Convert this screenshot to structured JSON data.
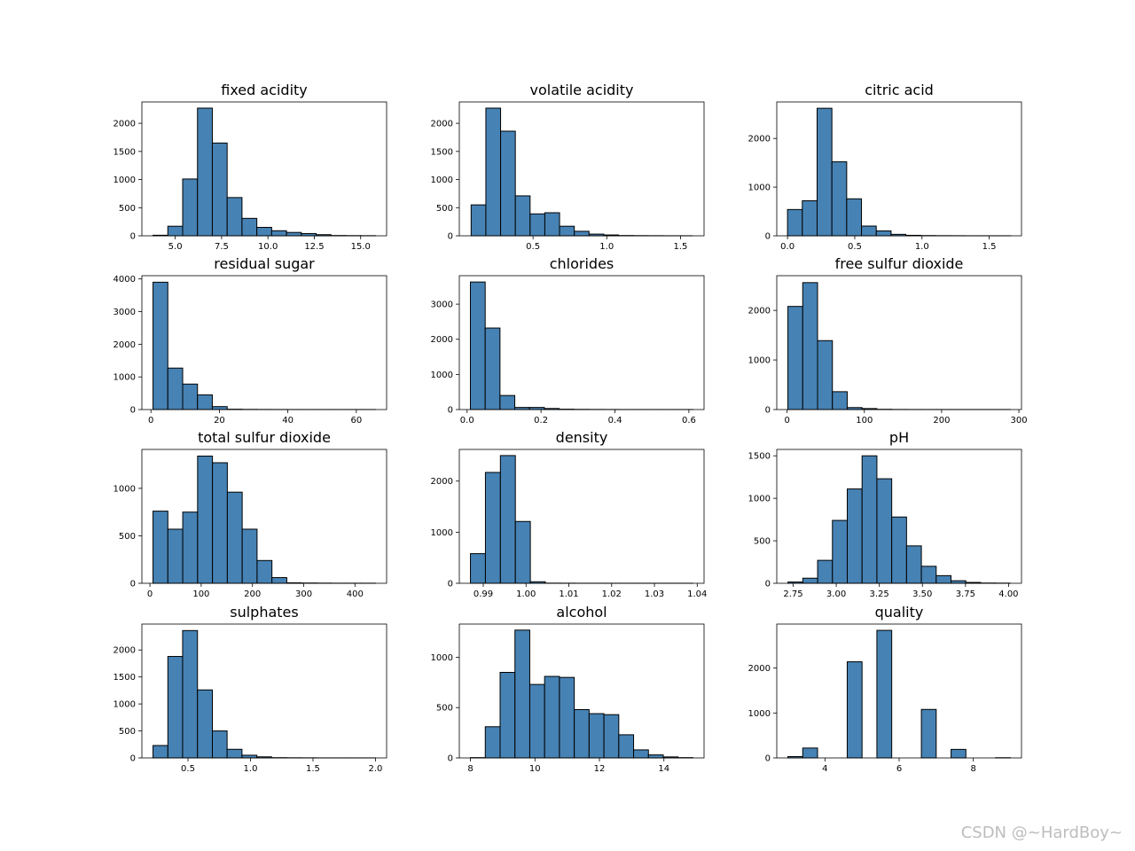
{
  "colors": {
    "bar_fill": "#4682b4",
    "bar_edge": "#000000",
    "axis": "#000000",
    "background": "#ffffff"
  },
  "watermark": "CSDN @~HardBoy~",
  "chart_data": [
    {
      "type": "bar",
      "title": "fixed acidity",
      "bin_edges": [
        3.8,
        4.6,
        5.4,
        6.2,
        7.0,
        7.8,
        8.6,
        9.4,
        10.2,
        11.0,
        11.8,
        12.6,
        13.4,
        14.2,
        15.0,
        15.8
      ],
      "values": [
        10,
        170,
        1010,
        2270,
        1650,
        680,
        310,
        150,
        90,
        60,
        40,
        20,
        5,
        3,
        2
      ],
      "xlim": [
        3.2,
        16.4
      ],
      "ylim": [
        0,
        2380
      ],
      "xticks": [
        5.0,
        7.5,
        10.0,
        12.5,
        15.0
      ],
      "xtick_labels": [
        "5.0",
        "7.5",
        "10.0",
        "12.5",
        "15.0"
      ],
      "yticks": [
        0,
        500,
        1000,
        1500,
        2000
      ],
      "ytick_labels": [
        "0",
        "500",
        "1000",
        "1500",
        "2000"
      ]
    },
    {
      "type": "bar",
      "title": "volatile acidity",
      "bin_edges": [
        0.08,
        0.18,
        0.28,
        0.38,
        0.48,
        0.58,
        0.68,
        0.78,
        0.88,
        0.98,
        1.08,
        1.18,
        1.28,
        1.38,
        1.48,
        1.58
      ],
      "values": [
        550,
        2270,
        1860,
        710,
        390,
        410,
        170,
        80,
        30,
        15,
        5,
        3,
        2,
        1,
        1
      ],
      "xlim": [
        0.0,
        1.66
      ],
      "ylim": [
        0,
        2380
      ],
      "xticks": [
        0.5,
        1.0,
        1.5
      ],
      "xtick_labels": [
        "0.5",
        "1.0",
        "1.5"
      ],
      "yticks": [
        0,
        500,
        1000,
        1500,
        2000
      ],
      "ytick_labels": [
        "0",
        "500",
        "1000",
        "1500",
        "2000"
      ]
    },
    {
      "type": "bar",
      "title": "citric acid",
      "bin_edges": [
        0.0,
        0.11,
        0.22,
        0.33,
        0.44,
        0.55,
        0.66,
        0.77,
        0.88,
        0.99,
        1.1,
        1.21,
        1.32,
        1.43,
        1.54,
        1.66
      ],
      "values": [
        540,
        720,
        2620,
        1520,
        760,
        200,
        100,
        30,
        10,
        5,
        3,
        2,
        1,
        1,
        1
      ],
      "xlim": [
        -0.08,
        1.74
      ],
      "ylim": [
        0,
        2750
      ],
      "xticks": [
        0.0,
        0.5,
        1.0,
        1.5
      ],
      "xtick_labels": [
        "0.0",
        "0.5",
        "1.0",
        "1.5"
      ],
      "yticks": [
        0,
        1000,
        2000
      ],
      "ytick_labels": [
        "0",
        "1000",
        "2000"
      ]
    },
    {
      "type": "bar",
      "title": "residual sugar",
      "bin_edges": [
        0.6,
        4.93,
        9.27,
        13.6,
        17.93,
        22.27,
        26.6,
        30.93,
        35.27,
        39.6,
        43.93,
        48.27,
        52.6,
        56.93,
        61.27,
        65.6
      ],
      "values": [
        3900,
        1270,
        780,
        450,
        90,
        10,
        5,
        3,
        2,
        1,
        1,
        1,
        1,
        1,
        1
      ],
      "xlim": [
        -2.65,
        68.85
      ],
      "ylim": [
        0,
        4100
      ],
      "xticks": [
        0,
        20,
        40,
        60
      ],
      "xtick_labels": [
        "0",
        "20",
        "40",
        "60"
      ],
      "yticks": [
        0,
        1000,
        2000,
        3000,
        4000
      ],
      "ytick_labels": [
        "0",
        "1000",
        "2000",
        "3000",
        "4000"
      ]
    },
    {
      "type": "bar",
      "title": "chlorides",
      "bin_edges": [
        0.009,
        0.049,
        0.089,
        0.129,
        0.169,
        0.209,
        0.249,
        0.289,
        0.329,
        0.369,
        0.409,
        0.449,
        0.489,
        0.529,
        0.569,
        0.611
      ],
      "values": [
        3630,
        2320,
        400,
        60,
        60,
        30,
        10,
        5,
        3,
        2,
        1,
        1,
        1,
        1,
        1
      ],
      "xlim": [
        -0.021,
        0.641
      ],
      "ylim": [
        0,
        3810
      ],
      "xticks": [
        0.0,
        0.2,
        0.4,
        0.6
      ],
      "xtick_labels": [
        "0.0",
        "0.2",
        "0.4",
        "0.6"
      ],
      "yticks": [
        0,
        1000,
        2000,
        3000
      ],
      "ytick_labels": [
        "0",
        "1000",
        "2000",
        "3000"
      ]
    },
    {
      "type": "bar",
      "title": "free sulfur dioxide",
      "bin_edges": [
        1,
        20.2,
        39.4,
        58.6,
        77.8,
        97,
        116.2,
        135.4,
        154.6,
        173.8,
        193,
        212.2,
        231.4,
        250.6,
        269.8,
        289
      ],
      "values": [
        2080,
        2560,
        1390,
        360,
        40,
        20,
        5,
        2,
        1,
        1,
        1,
        1,
        1,
        1,
        1
      ],
      "xlim": [
        -13.4,
        303.4
      ],
      "ylim": [
        0,
        2700
      ],
      "xticks": [
        0,
        100,
        200,
        300
      ],
      "xtick_labels": [
        "0",
        "100",
        "200",
        "300"
      ],
      "yticks": [
        0,
        1000,
        2000
      ],
      "ytick_labels": [
        "0",
        "1000",
        "2000"
      ]
    },
    {
      "type": "bar",
      "title": "total sulfur dioxide",
      "bin_edges": [
        6,
        35,
        64,
        93,
        122,
        151,
        180,
        209,
        238,
        267,
        296,
        325,
        354,
        383,
        412,
        440
      ],
      "values": [
        760,
        570,
        750,
        1340,
        1270,
        960,
        570,
        240,
        60,
        5,
        3,
        2,
        1,
        1,
        1
      ],
      "xlim": [
        -15.7,
        461.7
      ],
      "ylim": [
        0,
        1410
      ],
      "xticks": [
        0,
        100,
        200,
        300,
        400
      ],
      "xtick_labels": [
        "0",
        "100",
        "200",
        "300",
        "400"
      ],
      "yticks": [
        0,
        500,
        1000
      ],
      "ytick_labels": [
        "0",
        "500",
        "1000"
      ]
    },
    {
      "type": "bar",
      "title": "density",
      "bin_edges": [
        0.987,
        0.9905,
        0.994,
        0.9975,
        1.001,
        1.0045,
        1.008,
        1.0115,
        1.015,
        1.0185,
        1.022,
        1.0255,
        1.029,
        1.0325,
        1.036,
        1.039
      ],
      "values": [
        580,
        2170,
        2500,
        1210,
        30,
        3,
        2,
        1,
        1,
        1,
        1,
        1,
        1,
        1,
        1
      ],
      "xlim": [
        0.9844,
        1.0416
      ],
      "ylim": [
        0,
        2620
      ],
      "xticks": [
        0.99,
        1.0,
        1.01,
        1.02,
        1.03,
        1.04
      ],
      "xtick_labels": [
        "0.99",
        "1.00",
        "1.01",
        "1.02",
        "1.03",
        "1.04"
      ],
      "yticks": [
        0,
        1000,
        2000
      ],
      "ytick_labels": [
        "0",
        "1000",
        "2000"
      ]
    },
    {
      "type": "bar",
      "title": "pH",
      "bin_edges": [
        2.72,
        2.806,
        2.892,
        2.978,
        3.064,
        3.15,
        3.236,
        3.322,
        3.408,
        3.494,
        3.58,
        3.666,
        3.752,
        3.838,
        3.924,
        4.01
      ],
      "values": [
        15,
        60,
        270,
        740,
        1110,
        1500,
        1230,
        780,
        440,
        200,
        90,
        30,
        10,
        3,
        2
      ],
      "xlim": [
        2.655,
        4.075
      ],
      "ylim": [
        0,
        1575
      ],
      "xticks": [
        2.75,
        3.0,
        3.25,
        3.5,
        3.75,
        4.0
      ],
      "xtick_labels": [
        "2.75",
        "3.00",
        "3.25",
        "3.50",
        "3.75",
        "4.00"
      ],
      "yticks": [
        0,
        500,
        1000,
        1500
      ],
      "ytick_labels": [
        "0",
        "500",
        "1000",
        "1500"
      ]
    },
    {
      "type": "bar",
      "title": "sulphates",
      "bin_edges": [
        0.22,
        0.339,
        0.457,
        0.576,
        0.695,
        0.813,
        0.932,
        1.051,
        1.169,
        1.288,
        1.407,
        1.525,
        1.644,
        1.763,
        1.881,
        2.0
      ],
      "values": [
        230,
        1880,
        2360,
        1260,
        500,
        160,
        50,
        20,
        5,
        3,
        2,
        1,
        1,
        1,
        1
      ],
      "xlim": [
        0.131,
        2.089
      ],
      "ylim": [
        0,
        2480
      ],
      "xticks": [
        0.5,
        1.0,
        1.5,
        2.0
      ],
      "xtick_labels": [
        "0.5",
        "1.0",
        "1.5",
        "2.0"
      ],
      "yticks": [
        0,
        500,
        1000,
        1500,
        2000
      ],
      "ytick_labels": [
        "0",
        "500",
        "1000",
        "1500",
        "2000"
      ]
    },
    {
      "type": "bar",
      "title": "alcohol",
      "bin_edges": [
        8.0,
        8.46,
        8.92,
        9.38,
        9.84,
        10.3,
        10.76,
        11.22,
        11.68,
        12.14,
        12.6,
        13.06,
        13.52,
        13.98,
        14.44,
        14.9
      ],
      "values": [
        3,
        310,
        850,
        1270,
        730,
        810,
        800,
        480,
        440,
        430,
        230,
        80,
        30,
        10,
        3
      ],
      "xlim": [
        7.655,
        15.245
      ],
      "ylim": [
        0,
        1330
      ],
      "xticks": [
        8,
        10,
        12,
        14
      ],
      "xtick_labels": [
        "8",
        "10",
        "12",
        "14"
      ],
      "yticks": [
        0,
        500,
        1000
      ],
      "ytick_labels": [
        "0",
        "500",
        "1000"
      ]
    },
    {
      "type": "bar",
      "title": "quality",
      "bin_edges": [
        3.0,
        3.4,
        3.8,
        4.2,
        4.6,
        5.0,
        5.4,
        5.8,
        6.2,
        6.6,
        7.0,
        7.4,
        7.8,
        8.2,
        8.6,
        9.0
      ],
      "values": [
        30,
        220,
        0,
        0,
        2140,
        0,
        2840,
        0,
        0,
        1080,
        0,
        190,
        0,
        0,
        5
      ],
      "xlim": [
        2.7,
        9.3
      ],
      "ylim": [
        0,
        2980
      ],
      "xticks": [
        4,
        6,
        8
      ],
      "xtick_labels": [
        "4",
        "6",
        "8"
      ],
      "yticks": [
        0,
        1000,
        2000
      ],
      "ytick_labels": [
        "0",
        "1000",
        "2000"
      ]
    }
  ]
}
